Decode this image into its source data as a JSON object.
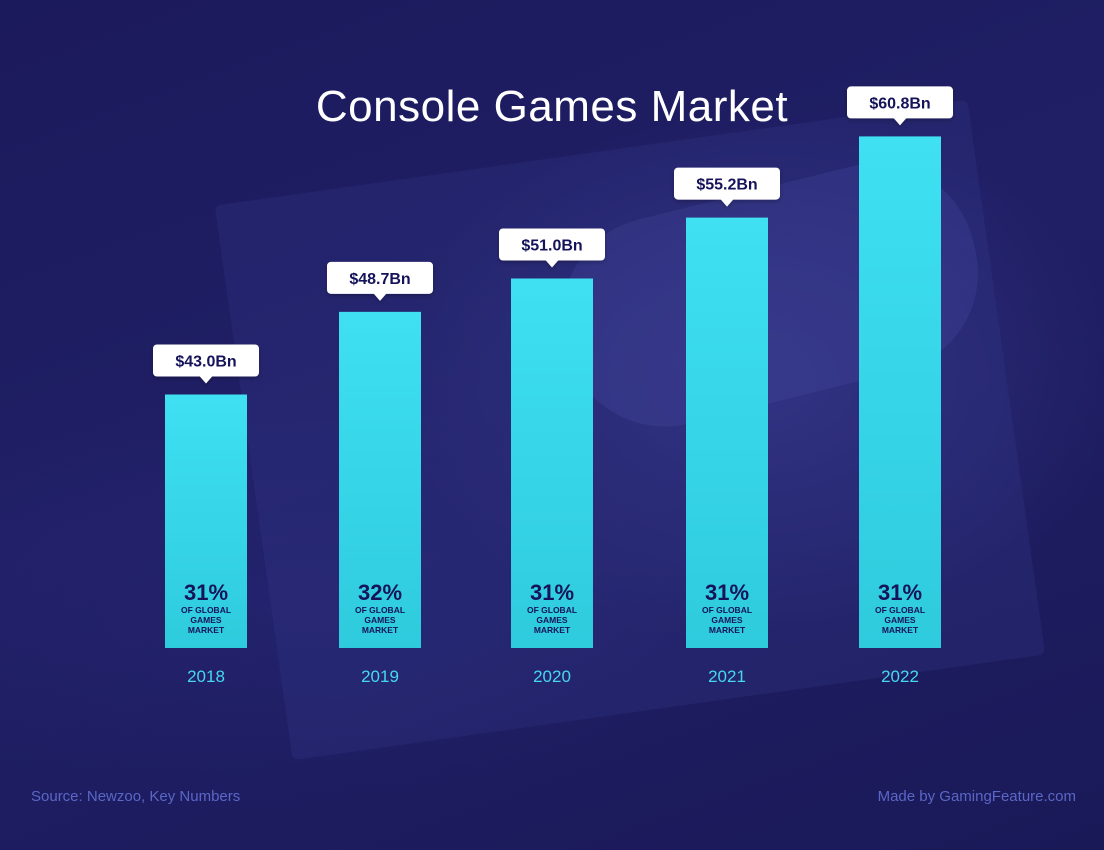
{
  "title": "Console Games Market",
  "footer": {
    "source": "Source: Newzoo, Key Numbers",
    "credit": "Made by GamingFeature.com"
  },
  "colors": {
    "background": "#1c1a5e",
    "bar_top": "#3ee0f2",
    "bar_bottom": "#2ecbdd",
    "label_bg": "#ffffff",
    "label_text": "#15135a",
    "year_text": "#45d8ee"
  },
  "chart_data": {
    "type": "bar",
    "title": "Console Games Market",
    "xlabel": "",
    "ylabel": "",
    "categories": [
      "2018",
      "2019",
      "2020",
      "2021",
      "2022"
    ],
    "values": [
      43.0,
      48.7,
      51.0,
      55.2,
      60.8
    ],
    "value_labels": [
      "$43.0Bn",
      "$48.7Bn",
      "$51.0Bn",
      "$55.2Bn",
      "$60.8Bn"
    ],
    "share_labels": [
      "31%",
      "32%",
      "31%",
      "31%",
      "31%"
    ],
    "share_caption": [
      "OF GLOBAL",
      "GAMES",
      "MARKET"
    ],
    "grid": false,
    "legend": "none"
  }
}
